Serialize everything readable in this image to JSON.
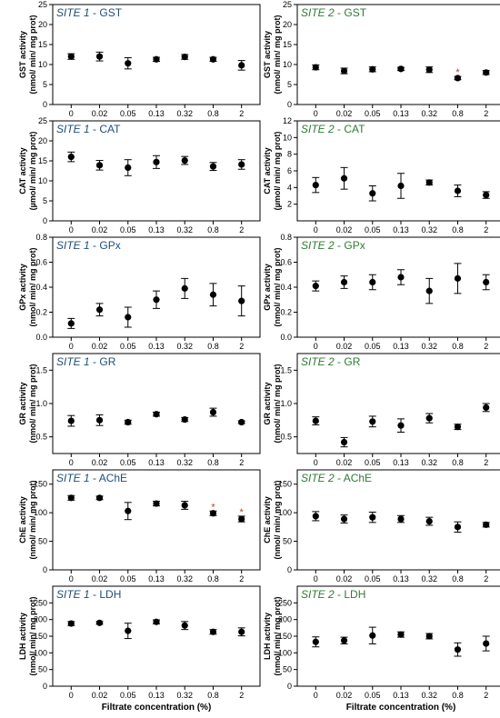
{
  "colors": {
    "site1": "#1f4e79",
    "site2": "#2e7d32",
    "marker": "#000000",
    "asterisk": "#c0392b"
  },
  "x_axis_label": "Filtrate concentration (%)",
  "chart_data": [
    {
      "type": "scatter",
      "title_site": "SITE 1",
      "title_sep": " - ",
      "title_enzyme": "GST",
      "ylabel_lines": [
        "GST activity",
        "(nmol/ min/ mg prot)"
      ],
      "categories": [
        "0",
        "0.02",
        "0.05",
        "0.13",
        "0.32",
        "0.8",
        "2"
      ],
      "values": [
        12,
        12,
        10.3,
        11.3,
        11.9,
        11.3,
        9.8
      ],
      "errors": [
        0.7,
        1.1,
        1.4,
        0.5,
        0.6,
        0.5,
        1.2
      ],
      "significant": [],
      "ylim": [
        0,
        25
      ],
      "yticks": [
        "0",
        "5",
        "10",
        "15",
        "20",
        "25"
      ],
      "grid": false
    },
    {
      "type": "scatter",
      "title_site": "SITE 2",
      "title_sep": " - ",
      "title_enzyme": "GST",
      "ylabel_lines": [
        "GST activity",
        "(nmol/ min/ mg prot)"
      ],
      "categories": [
        "0",
        "0.02",
        "0.05",
        "0.13",
        "0.32",
        "0.8",
        "2"
      ],
      "values": [
        9.3,
        8.4,
        8.8,
        8.9,
        8.7,
        6.6,
        8.0
      ],
      "errors": [
        0.6,
        0.7,
        0.6,
        0.4,
        0.7,
        0.4,
        0.5
      ],
      "significant": [
        5
      ],
      "ylim": [
        0,
        25
      ],
      "yticks": [
        "0",
        "5",
        "10",
        "15",
        "20",
        "25"
      ],
      "grid": false
    },
    {
      "type": "scatter",
      "title_site": "SITE 1",
      "title_sep": " - ",
      "title_enzyme": "CAT",
      "ylabel_lines": [
        "CAT activity",
        "(µmol/ min/ mg prot)"
      ],
      "categories": [
        "0",
        "0.02",
        "0.05",
        "0.13",
        "0.32",
        "0.8",
        "2"
      ],
      "values": [
        16,
        13.9,
        13.3,
        14.7,
        15.1,
        13.6,
        14.1
      ],
      "errors": [
        1.2,
        1.2,
        2.0,
        1.6,
        1.0,
        1.0,
        1.2
      ],
      "significant": [],
      "ylim": [
        0,
        25
      ],
      "yticks": [
        "0",
        "5",
        "10",
        "15",
        "20",
        "25"
      ],
      "grid": false
    },
    {
      "type": "scatter",
      "title_site": "SITE 2",
      "title_sep": " - ",
      "title_enzyme": "CAT",
      "ylabel_lines": [
        "CAT activity",
        "(µmol/ min/ mg prot)"
      ],
      "categories": [
        "0",
        "0.02",
        "0.05",
        "0.13",
        "0.32",
        "0.8",
        "2"
      ],
      "values": [
        4.3,
        5.1,
        3.3,
        4.2,
        4.6,
        3.6,
        3.1
      ],
      "errors": [
        0.9,
        1.3,
        0.9,
        1.5,
        0.3,
        0.7,
        0.4
      ],
      "significant": [],
      "ylim": [
        0,
        12
      ],
      "yticks": [
        "2",
        "4",
        "6",
        "8",
        "10",
        "12"
      ],
      "grid": false
    },
    {
      "type": "scatter",
      "title_site": "SITE 1",
      "title_sep": " - ",
      "title_enzyme": "GPx",
      "ylabel_lines": [
        "GPx activity",
        "(nmol/ min/ mg prot)"
      ],
      "categories": [
        "0",
        "0.02",
        "0.05",
        "0.13",
        "0.32",
        "0.8",
        "2"
      ],
      "values": [
        0.11,
        0.22,
        0.16,
        0.3,
        0.39,
        0.34,
        0.29
      ],
      "errors": [
        0.04,
        0.05,
        0.08,
        0.07,
        0.08,
        0.09,
        0.12
      ],
      "significant": [],
      "ylim": [
        0,
        0.8
      ],
      "yticks": [
        "0.0",
        "0.2",
        "0.4",
        "0.6",
        "0.8"
      ],
      "grid": false
    },
    {
      "type": "scatter",
      "title_site": "SITE 2",
      "title_sep": " - ",
      "title_enzyme": "GPx",
      "ylabel_lines": [
        "GPx activity",
        "(nmol/ min/ mg prot)"
      ],
      "categories": [
        "0",
        "0.02",
        "0.05",
        "0.13",
        "0.32",
        "0.8",
        "2"
      ],
      "values": [
        0.41,
        0.44,
        0.44,
        0.48,
        0.37,
        0.47,
        0.44
      ],
      "errors": [
        0.04,
        0.05,
        0.06,
        0.06,
        0.1,
        0.12,
        0.06
      ],
      "significant": [],
      "ylim": [
        0,
        0.8
      ],
      "yticks": [
        "0.0",
        "0.2",
        "0.4",
        "0.6",
        "0.8"
      ],
      "grid": false
    },
    {
      "type": "scatter",
      "title_site": "SITE 1",
      "title_sep": " - ",
      "title_enzyme": "GR",
      "ylabel_lines": [
        "GR activity",
        "(nmol/ min/ mg prot)"
      ],
      "categories": [
        "0",
        "0.02",
        "0.05",
        "0.13",
        "0.32",
        "0.8",
        "2"
      ],
      "values": [
        0.74,
        0.75,
        0.72,
        0.84,
        0.76,
        0.87,
        0.72
      ],
      "errors": [
        0.08,
        0.08,
        0.03,
        0.03,
        0.03,
        0.06,
        0.02
      ],
      "significant": [],
      "ylim": [
        0.25,
        1.75
      ],
      "yticks": [
        "0.5",
        "1.0",
        "1.5"
      ],
      "grid": false
    },
    {
      "type": "scatter",
      "title_site": "SITE 2",
      "title_sep": " - ",
      "title_enzyme": "GR",
      "ylabel_lines": [
        "GR activity",
        "(nmol/ min/ mg prot)"
      ],
      "categories": [
        "0",
        "0.02",
        "0.05",
        "0.13",
        "0.32",
        "0.8",
        "2"
      ],
      "values": [
        0.74,
        0.42,
        0.73,
        0.67,
        0.78,
        0.65,
        0.94
      ],
      "errors": [
        0.06,
        0.07,
        0.08,
        0.1,
        0.07,
        0.04,
        0.06
      ],
      "significant": [],
      "ylim": [
        0.25,
        1.75
      ],
      "yticks": [
        "0.5",
        "1.0",
        "1.5"
      ],
      "grid": false
    },
    {
      "type": "scatter",
      "title_site": "SITE 1",
      "title_sep": " - ",
      "title_enzyme": "AChE",
      "ylabel_lines": [
        "ChE activity",
        "(nmol/ min/ mg prot)"
      ],
      "categories": [
        "0",
        "0.02",
        "0.05",
        "0.13",
        "0.32",
        "0.8",
        "2"
      ],
      "values": [
        126,
        126,
        103,
        116,
        113,
        99,
        89
      ],
      "errors": [
        4,
        3,
        15,
        4,
        7,
        4,
        5
      ],
      "significant": [
        5,
        6
      ],
      "ylim": [
        0,
        175
      ],
      "yticks": [
        "0",
        "50",
        "100",
        "150"
      ],
      "grid": false
    },
    {
      "type": "scatter",
      "title_site": "SITE 2",
      "title_sep": " - ",
      "title_enzyme": "AChE",
      "ylabel_lines": [
        "ChE activity",
        "(nmol/ min/ mg prot)"
      ],
      "categories": [
        "0",
        "0.02",
        "0.05",
        "0.13",
        "0.32",
        "0.8",
        "2"
      ],
      "values": [
        94,
        89,
        92,
        89,
        85,
        75,
        79
      ],
      "errors": [
        8,
        7,
        9,
        6,
        7,
        9,
        4
      ],
      "significant": [],
      "ylim": [
        0,
        175
      ],
      "yticks": [
        "0",
        "50",
        "100",
        "150"
      ],
      "grid": false
    },
    {
      "type": "scatter",
      "title_site": "SITE 1",
      "title_sep": " - ",
      "title_enzyme": "LDH",
      "ylabel_lines": [
        "LDH activity",
        "(nmol/ min/ mg prot)"
      ],
      "categories": [
        "0",
        "0.02",
        "0.05",
        "0.13",
        "0.32",
        "0.8",
        "2"
      ],
      "values": [
        188,
        190,
        166,
        193,
        182,
        163,
        163
      ],
      "errors": [
        6,
        4,
        23,
        6,
        12,
        7,
        12
      ],
      "significant": [],
      "ylim": [
        0,
        300
      ],
      "yticks": [
        "0",
        "50",
        "100",
        "150",
        "200",
        "250"
      ],
      "grid": false
    },
    {
      "type": "scatter",
      "title_site": "SITE 2",
      "title_sep": " - ",
      "title_enzyme": "LDH",
      "ylabel_lines": [
        "LDH activity",
        "(nmol/ min/ mg prot)"
      ],
      "categories": [
        "0",
        "0.02",
        "0.05",
        "0.13",
        "0.32",
        "0.8",
        "2"
      ],
      "values": [
        133,
        137,
        152,
        155,
        150,
        110,
        128
      ],
      "errors": [
        15,
        10,
        25,
        8,
        8,
        20,
        22
      ],
      "significant": [],
      "ylim": [
        0,
        300
      ],
      "yticks": [
        "0",
        "50",
        "100",
        "150",
        "200",
        "250"
      ],
      "grid": false
    }
  ]
}
